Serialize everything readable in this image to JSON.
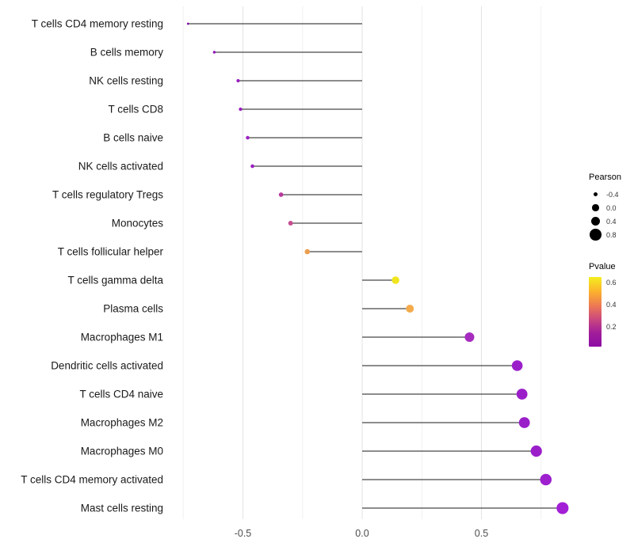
{
  "chart_data": {
    "type": "lollipop",
    "title": "",
    "xlabel": "",
    "ylabel": "",
    "orientation": "horizontal",
    "xlim": [
      -0.82,
      0.92
    ],
    "x_ticks": [
      -0.5,
      0.0,
      0.5
    ],
    "x_tick_labels": [
      "-0.5",
      "0.0",
      "0.5"
    ],
    "x_minor_ticks": [
      -0.75,
      -0.25,
      0.25,
      0.75
    ],
    "grid": true,
    "baseline": 0,
    "segment_color": "#1a1a1a",
    "points": [
      {
        "category": "T cells CD4 memory resting",
        "pearson": -0.73,
        "pvalue": 0.02,
        "color": "#7c0ca6"
      },
      {
        "category": "B cells memory",
        "pearson": -0.62,
        "pvalue": 0.04,
        "color": "#8f16b8"
      },
      {
        "category": "NK cells resting",
        "pearson": -0.52,
        "pvalue": 0.05,
        "color": "#9a1fc0"
      },
      {
        "category": "T cells CD8",
        "pearson": -0.51,
        "pvalue": 0.05,
        "color": "#9a1fc0"
      },
      {
        "category": "B cells naive",
        "pearson": -0.48,
        "pvalue": 0.06,
        "color": "#9c23c2"
      },
      {
        "category": "NK cells activated",
        "pearson": -0.46,
        "pvalue": 0.07,
        "color": "#9c23c2"
      },
      {
        "category": "T cells regulatory  Tregs",
        "pearson": -0.34,
        "pvalue": 0.22,
        "color": "#b63a9c"
      },
      {
        "category": "Monocytes",
        "pearson": -0.3,
        "pvalue": 0.28,
        "color": "#c44f92"
      },
      {
        "category": "T cells follicular helper",
        "pearson": -0.23,
        "pvalue": 0.45,
        "color": "#eb9d4e"
      },
      {
        "category": "T cells gamma delta",
        "pearson": 0.14,
        "pvalue": 0.62,
        "color": "#f1e51d"
      },
      {
        "category": "Plasma cells",
        "pearson": 0.2,
        "pvalue": 0.48,
        "color": "#f3ab4b"
      },
      {
        "category": "Macrophages M1",
        "pearson": 0.45,
        "pvalue": 0.1,
        "color": "#a52cbe"
      },
      {
        "category": "Dendritic cells activated",
        "pearson": 0.65,
        "pvalue": 0.01,
        "color": "#9a1fc9"
      },
      {
        "category": "T cells CD4 naive",
        "pearson": 0.67,
        "pvalue": 0.01,
        "color": "#9a1fc9"
      },
      {
        "category": "Macrophages M2",
        "pearson": 0.68,
        "pvalue": 0.01,
        "color": "#9a1fc9"
      },
      {
        "category": "Macrophages M0",
        "pearson": 0.73,
        "pvalue": 0.01,
        "color": "#9a1fc9"
      },
      {
        "category": "T cells CD4 memory activated",
        "pearson": 0.77,
        "pvalue": 0.005,
        "color": "#9d1fce"
      },
      {
        "category": "Mast cells resting",
        "pearson": 0.84,
        "pvalue": 0.001,
        "color": "#a21fd6"
      }
    ],
    "legend_size": {
      "title": "Pearson",
      "labels": [
        "-0.4",
        "0.0",
        "0.4",
        "0.8"
      ],
      "values": [
        -0.4,
        0.0,
        0.4,
        0.8
      ],
      "dot_color": "#000000"
    },
    "legend_color": {
      "title": "Pvalue",
      "tick_labels": [
        "0.6",
        "0.4",
        "0.2"
      ],
      "tick_values": [
        0.6,
        0.4,
        0.2
      ],
      "domain": [
        0.02,
        0.65
      ],
      "gradient_stops": [
        "#f3ef1f",
        "#fcb42c",
        "#ee7c51",
        "#cb4a7d",
        "#a21d9a",
        "#8d0ca4"
      ]
    },
    "style": {
      "grid_major_color": "#e3e3e3",
      "grid_minor_color": "#f0f0f0",
      "axis_text_color": "#4d4d4d",
      "category_text_color": "#1a1a1a"
    }
  }
}
